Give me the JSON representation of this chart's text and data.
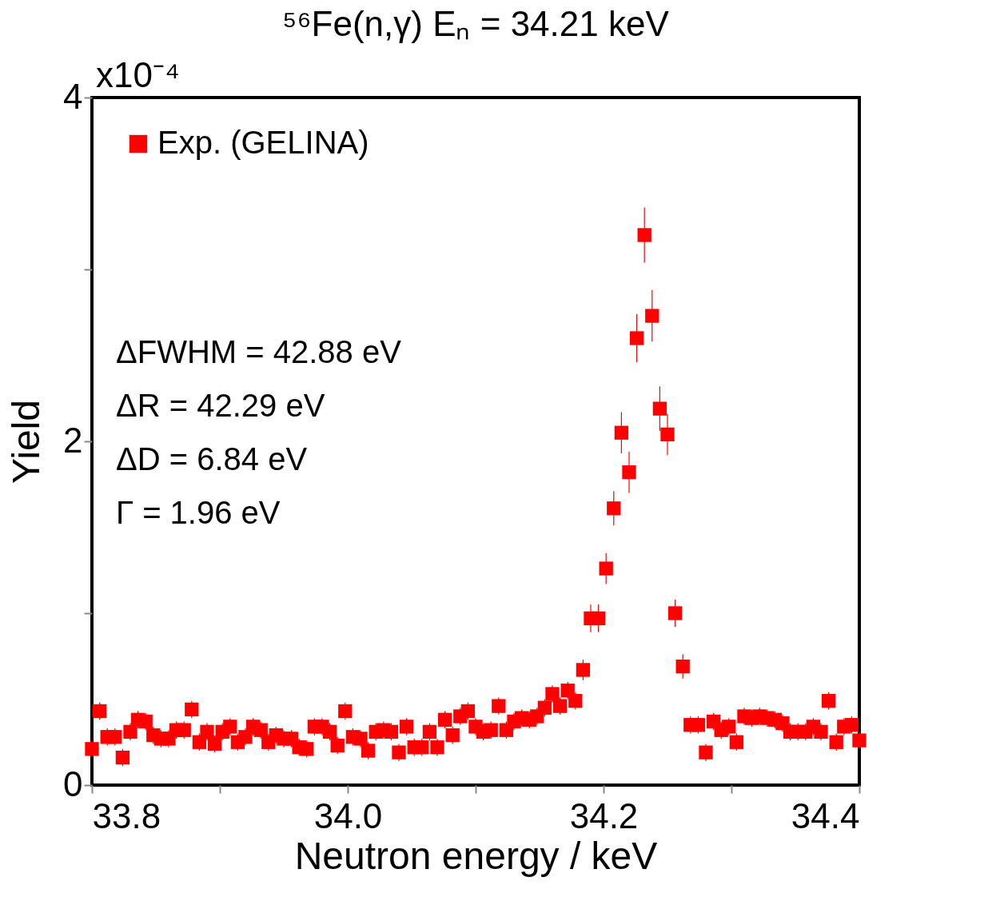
{
  "chart_data": {
    "type": "scatter",
    "title": "⁵⁶Fe(n,γ)    Eₙ =  34.21 keV",
    "xlabel": "Neutron  energy / keV",
    "ylabel": "Yield",
    "annotations": [
      "x10⁻⁴",
      "ΔFWHM  =  42.88 eV",
      "ΔR  =  42.29 eV",
      "ΔD  =  6.84 eV",
      "Γ  =  1.96 eV"
    ],
    "xlim": [
      33.8,
      34.4
    ],
    "xticks": [
      33.8,
      {
        "value": 33.9,
        "label": null
      },
      {
        "value": 34,
        "label": "34.0"
      },
      {
        "value": 34.1,
        "label": null
      },
      34.2,
      {
        "value": 34.3,
        "label": null
      },
      34.4
    ],
    "ylim": [
      0,
      4
    ],
    "yticks": [
      0,
      {
        "value": 1,
        "label": null
      },
      2,
      {
        "value": 3,
        "label": null
      },
      4
    ],
    "grid": false,
    "legend": "top left",
    "marker": "square",
    "x": [
      33.8,
      33.806,
      33.812,
      33.818,
      33.824,
      33.83,
      33.836,
      33.842,
      33.848,
      33.854,
      33.86,
      33.866,
      33.872,
      33.878,
      33.884,
      33.89,
      33.896,
      33.902,
      33.908,
      33.914,
      33.92,
      33.926,
      33.932,
      33.938,
      33.944,
      33.95,
      33.956,
      33.962,
      33.968,
      33.974,
      33.98,
      33.986,
      33.992,
      33.998,
      34.004,
      34.01,
      34.016,
      34.022,
      34.028,
      34.034,
      34.04,
      34.046,
      34.052,
      34.058,
      34.064,
      34.07,
      34.076,
      34.082,
      34.088,
      34.094,
      34.1,
      34.106,
      34.112,
      34.118,
      34.124,
      34.13,
      34.136,
      34.142,
      34.148,
      34.154,
      34.16,
      34.166,
      34.172,
      34.178,
      34.184,
      34.19,
      34.196,
      34.202,
      34.208,
      34.214,
      34.22,
      34.226,
      34.232,
      34.238,
      34.244,
      34.25,
      34.256,
      34.262,
      34.268,
      34.274,
      34.28,
      34.286,
      34.292,
      34.298,
      34.304,
      34.31,
      34.316,
      34.322,
      34.328,
      34.334,
      34.34,
      34.346,
      34.352,
      34.358,
      34.364,
      34.37,
      34.376,
      34.382,
      34.388,
      34.394,
      34.4
    ],
    "series": [
      {
        "name": "Exp. (GELINA)",
        "color": "#ff0000",
        "values": [
          0.21,
          0.43,
          0.28,
          0.28,
          0.16,
          0.31,
          0.38,
          0.37,
          0.29,
          0.27,
          0.27,
          0.32,
          0.32,
          0.44,
          0.25,
          0.31,
          0.24,
          0.31,
          0.34,
          0.25,
          0.28,
          0.34,
          0.32,
          0.25,
          0.29,
          0.27,
          0.27,
          0.22,
          0.21,
          0.34,
          0.34,
          0.31,
          0.23,
          0.43,
          0.28,
          0.27,
          0.2,
          0.31,
          0.32,
          0.31,
          0.19,
          0.34,
          0.22,
          0.22,
          0.31,
          0.22,
          0.38,
          0.29,
          0.4,
          0.43,
          0.34,
          0.31,
          0.32,
          0.46,
          0.32,
          0.37,
          0.39,
          0.38,
          0.4,
          0.45,
          0.53,
          0.46,
          0.55,
          0.49,
          0.67,
          0.97,
          0.97,
          1.26,
          1.61,
          2.05,
          1.82,
          2.6,
          3.2,
          2.73,
          2.19,
          2.04,
          1.0,
          0.69,
          0.35,
          0.35,
          0.19,
          0.37,
          0.32,
          0.34,
          0.25,
          0.4,
          0.39,
          0.4,
          0.39,
          0.38,
          0.36,
          0.31,
          0.31,
          0.31,
          0.34,
          0.31,
          0.49,
          0.25,
          0.34,
          0.35,
          0.26
        ],
        "errors": [
          0.05,
          0.05,
          0.05,
          0.05,
          0.05,
          0.05,
          0.05,
          0.05,
          0.05,
          0.05,
          0.05,
          0.05,
          0.05,
          0.05,
          0.05,
          0.05,
          0.05,
          0.05,
          0.05,
          0.05,
          0.05,
          0.05,
          0.05,
          0.05,
          0.05,
          0.05,
          0.05,
          0.05,
          0.05,
          0.05,
          0.05,
          0.05,
          0.05,
          0.05,
          0.05,
          0.05,
          0.05,
          0.05,
          0.05,
          0.05,
          0.05,
          0.05,
          0.05,
          0.05,
          0.05,
          0.05,
          0.05,
          0.05,
          0.05,
          0.05,
          0.05,
          0.05,
          0.05,
          0.05,
          0.05,
          0.05,
          0.05,
          0.05,
          0.05,
          0.05,
          0.05,
          0.05,
          0.05,
          0.05,
          0.06,
          0.08,
          0.08,
          0.09,
          0.1,
          0.12,
          0.12,
          0.14,
          0.16,
          0.15,
          0.13,
          0.12,
          0.08,
          0.07,
          0.05,
          0.05,
          0.05,
          0.05,
          0.05,
          0.05,
          0.05,
          0.05,
          0.05,
          0.05,
          0.05,
          0.05,
          0.05,
          0.05,
          0.05,
          0.05,
          0.05,
          0.05,
          0.05,
          0.05,
          0.05,
          0.05,
          0.05
        ]
      }
    ]
  }
}
